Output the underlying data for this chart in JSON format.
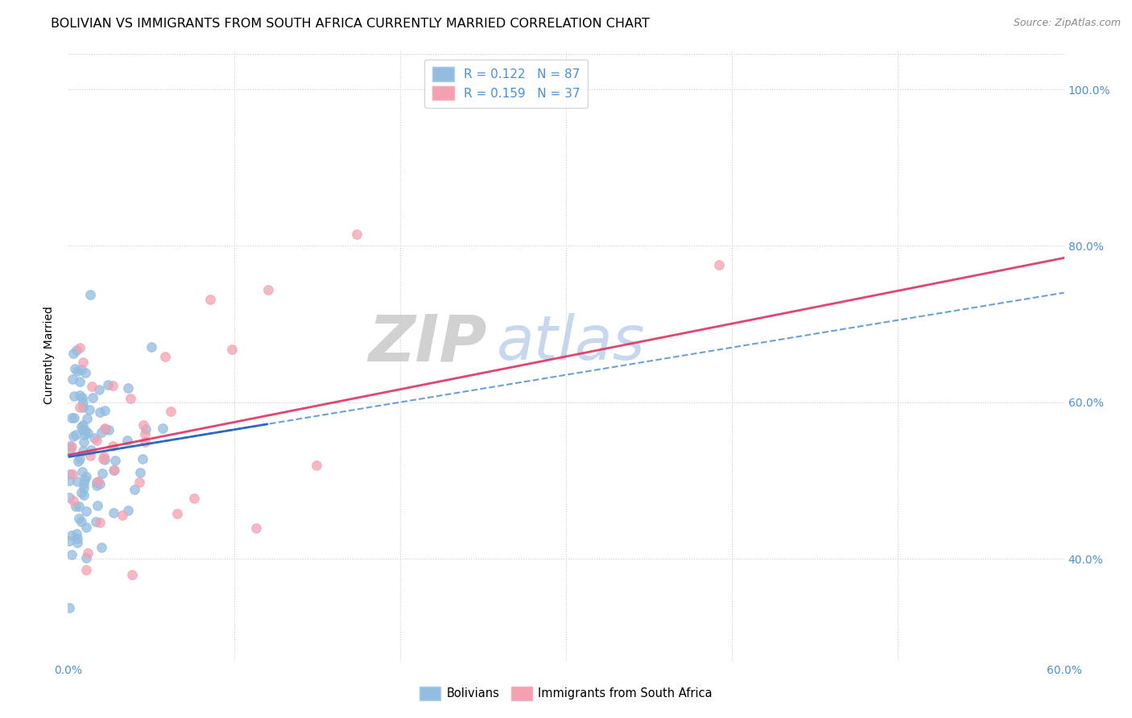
{
  "title": "BOLIVIAN VS IMMIGRANTS FROM SOUTH AFRICA CURRENTLY MARRIED CORRELATION CHART",
  "source": "Source: ZipAtlas.com",
  "ylabel_label": "Currently Married",
  "xmin": 0.0,
  "xmax": 0.6,
  "ymin": 0.27,
  "ymax": 1.05,
  "watermark_ZIP": "ZIP",
  "watermark_atlas": "atlas",
  "blue_color": "#92bce0",
  "pink_color": "#f4a0b0",
  "blue_line_color": "#2060c0",
  "pink_line_color": "#e03060",
  "blue_dash_color": "#5090d0",
  "blue_R": 0.122,
  "pink_R": 0.159,
  "blue_N": 87,
  "pink_N": 37,
  "grid_color": "#cccccc",
  "background_color": "#ffffff",
  "title_fontsize": 11.5,
  "axis_label_fontsize": 10,
  "tick_fontsize": 10,
  "legend_text_color": "#4a90d9",
  "tick_color": "#4a90d9"
}
